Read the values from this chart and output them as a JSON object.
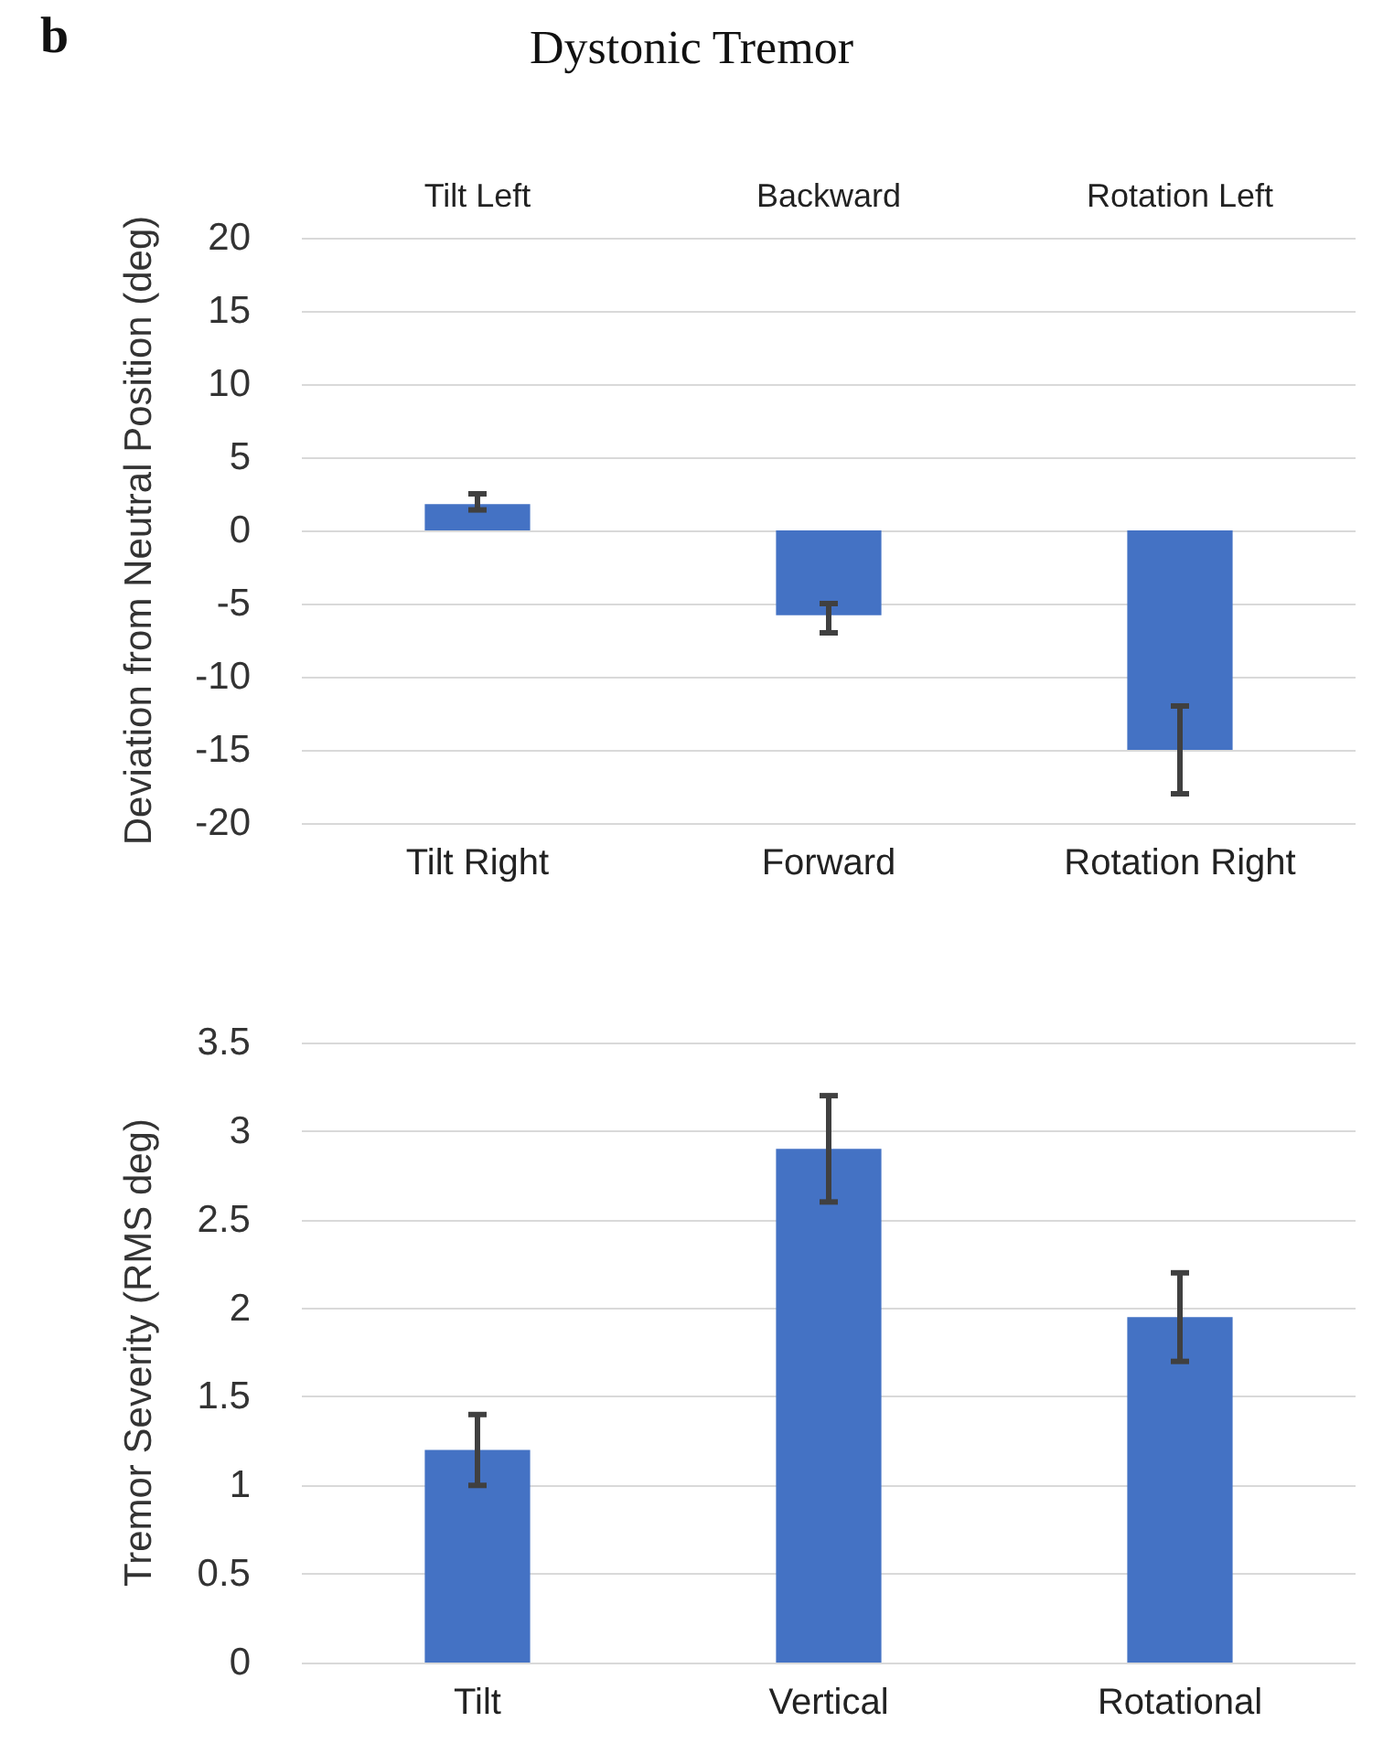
{
  "chart_data": [
    {
      "type": "bar",
      "title": "Dystonic Tremor",
      "annotations": [
        "b",
        "Tilt Left",
        "Backward",
        "Rotation Left"
      ],
      "ylabel": "Deviation from Neutral Position (deg)",
      "categories": [
        "Tilt Right",
        "Forward",
        "Rotation Right"
      ],
      "values": [
        1.8,
        -5.8,
        -15
      ],
      "errors": [
        [
          1.4,
          2.5
        ],
        [
          -7,
          -5
        ],
        [
          -18,
          -12
        ]
      ],
      "color": "#4472c4",
      "ylim": [
        -20,
        20
      ],
      "yticks": [
        -20,
        -15,
        -10,
        -5,
        0,
        5,
        10,
        15,
        20
      ],
      "grid": "y"
    },
    {
      "type": "bar",
      "ylabel": "Tremor Severity (RMS deg)",
      "categories": [
        "Tilt",
        "Vertical",
        "Rotational"
      ],
      "values": [
        1.2,
        2.9,
        1.95
      ],
      "errors": [
        [
          1.0,
          1.4
        ],
        [
          2.6,
          3.2
        ],
        [
          1.7,
          2.2
        ]
      ],
      "color": "#4472c4",
      "ylim": [
        0,
        3.5
      ],
      "yticks": [
        0,
        0.5,
        1,
        1.5,
        2,
        2.5,
        3,
        3.5
      ],
      "grid": "y"
    }
  ]
}
